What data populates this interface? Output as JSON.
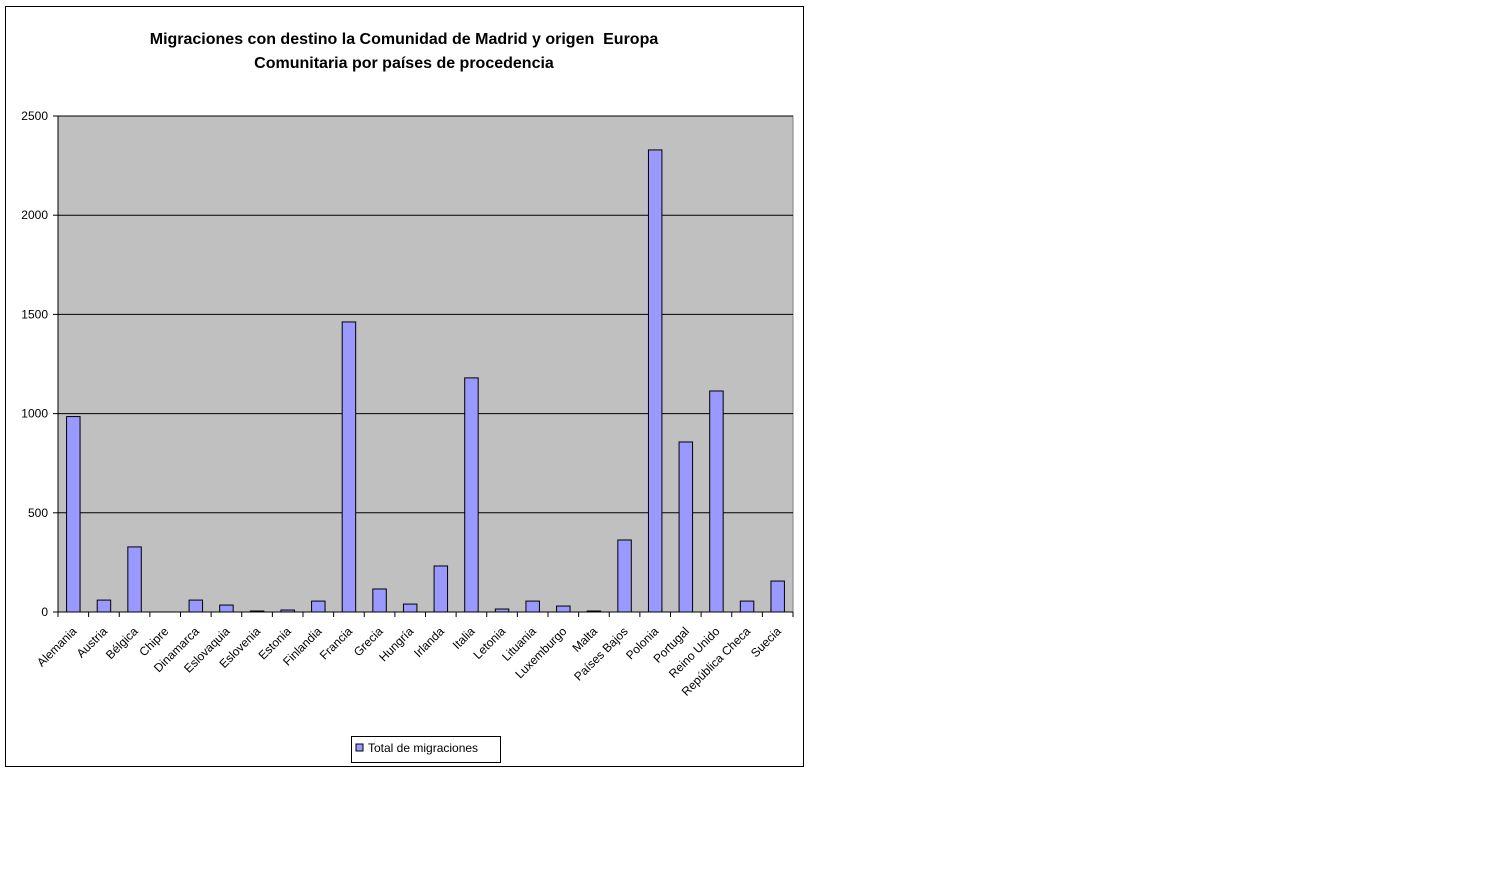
{
  "chart_data": {
    "type": "bar",
    "title": [
      "Migraciones con destino la Comunidad de Madrid y origen  Europa",
      "Comunitaria por países de procedencia"
    ],
    "categories": [
      "Alemania",
      "Austria",
      "Bélgica",
      "Chipre",
      "Dinamarca",
      "Eslovaquia",
      "Eslovenia",
      "Estonia",
      "Finlandia",
      "Francia",
      "Grecia",
      "Hungría",
      "Irlanda",
      "Italia",
      "Letonia",
      "Lituania",
      "Luxemburgo",
      "Malta",
      "Países Bajos",
      "Polonia",
      "Portugal",
      "Reino Unido",
      "República Checa",
      "Suecia"
    ],
    "series": [
      {
        "name": "Total de migraciones",
        "color": "#9999ff",
        "values": [
          985,
          60,
          328,
          0,
          60,
          35,
          5,
          10,
          55,
          1462,
          116,
          40,
          232,
          1180,
          15,
          55,
          30,
          5,
          363,
          2329,
          857,
          1114,
          55,
          156
        ]
      }
    ],
    "ylim": [
      0,
      2500
    ],
    "yticks": [
      0,
      500,
      1000,
      1500,
      2000,
      2500
    ],
    "grid": true,
    "legend": "bottom"
  }
}
